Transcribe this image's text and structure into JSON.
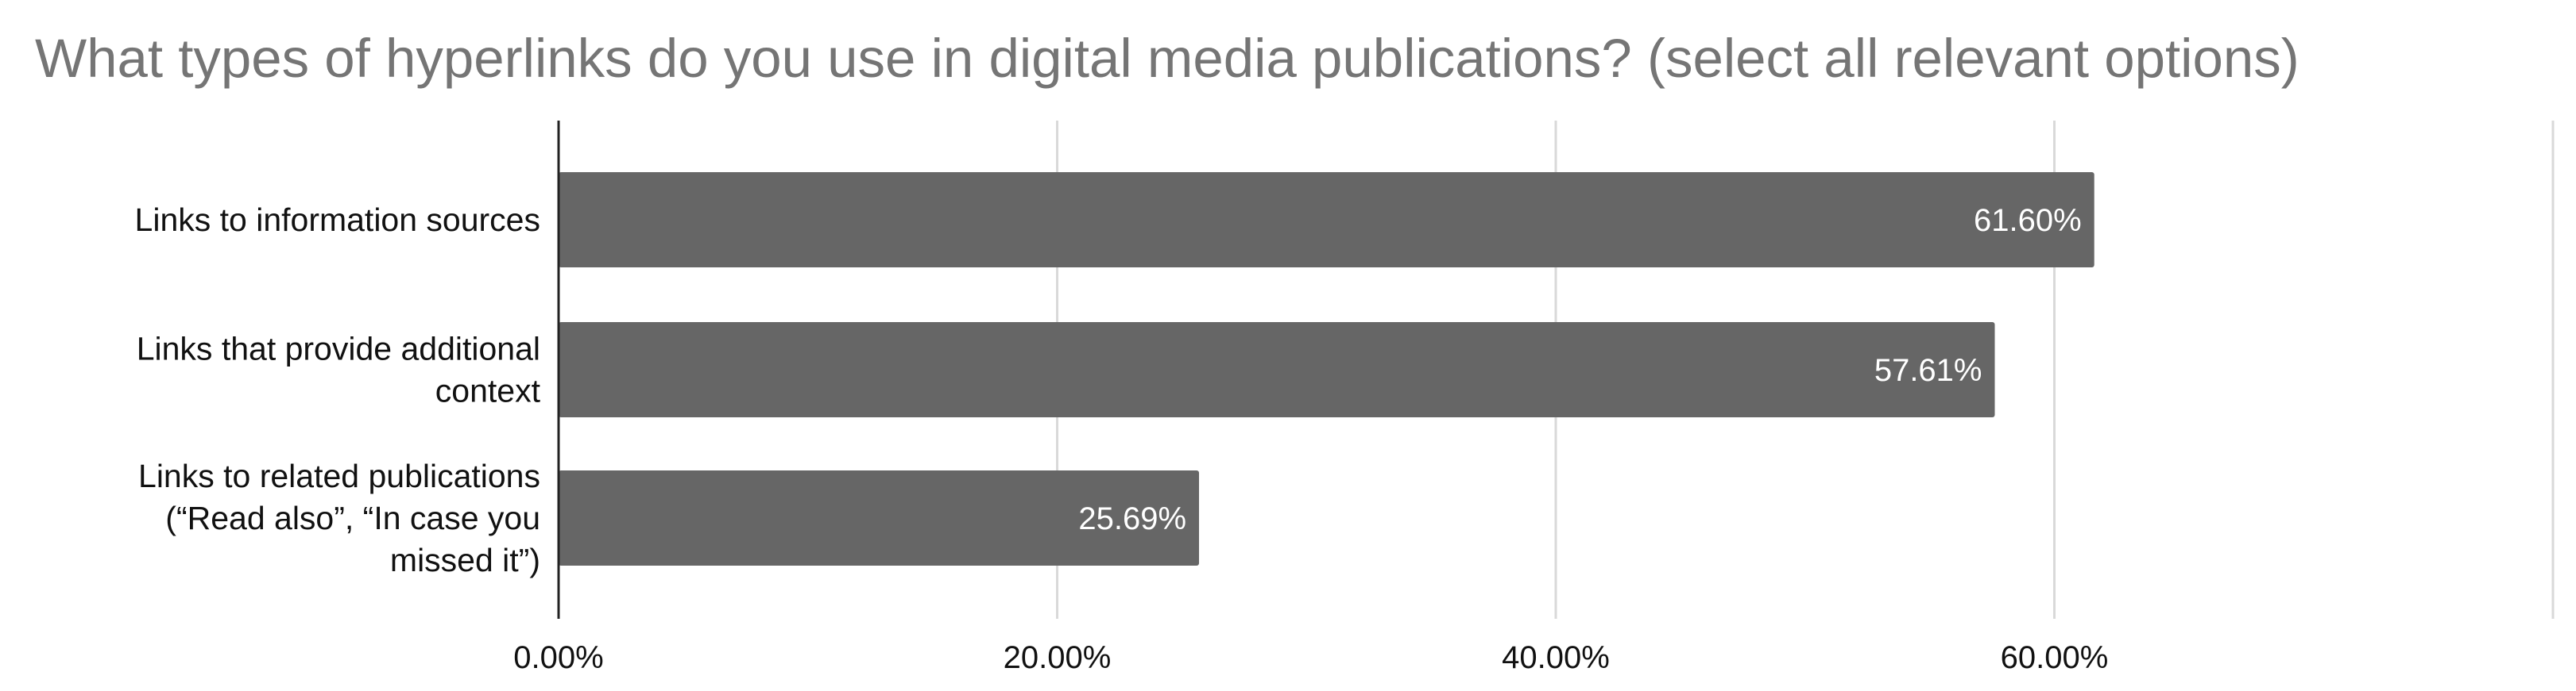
{
  "chart_data": {
    "type": "bar",
    "orientation": "horizontal",
    "title": "What types of hyperlinks do you use in digital media publications? (select all relevant options)",
    "categories": [
      [
        "Links to information sources"
      ],
      [
        "Links that provide additional",
        "context"
      ],
      [
        "Links to related publications",
        "(“Read also”, “In case you",
        "missed it”)"
      ]
    ],
    "values": [
      61.6,
      57.61,
      25.69
    ],
    "data_labels": [
      "61.60%",
      "57.61%",
      "25.69%"
    ],
    "xlim": [
      0,
      80
    ],
    "x_ticks": [
      0,
      20,
      40,
      60,
      80
    ],
    "x_tick_labels": [
      "0.00%",
      "20.00%",
      "40.00%",
      "60.00%",
      ""
    ],
    "xlabel": "",
    "ylabel": "",
    "grid": true,
    "legend": "none",
    "colors": {
      "bar": "#666666",
      "bar_label": "#ffffff",
      "gridline": "#d9d9d9",
      "title": "#757575",
      "text": "#111111"
    }
  }
}
